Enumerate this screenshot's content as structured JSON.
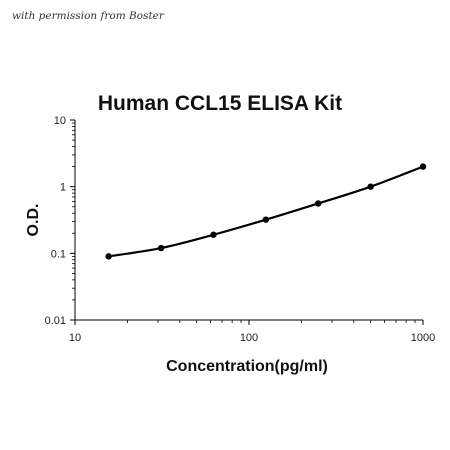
{
  "watermark": "with permission from Boster",
  "chart_data": {
    "type": "line",
    "title": "Human CCL15 ELISA Kit",
    "xlabel": "Concentration(pg/ml)",
    "ylabel": "O.D.",
    "x_scale": "log",
    "y_scale": "log",
    "xlim": [
      10,
      1000
    ],
    "ylim": [
      0.01,
      10
    ],
    "x_ticks": [
      10,
      100,
      1000
    ],
    "y_ticks": [
      0.01,
      0.1,
      1,
      10
    ],
    "x_tick_labels": [
      "10",
      "100",
      "1000"
    ],
    "y_tick_labels": [
      "0.01",
      "0.1",
      "1",
      "10"
    ],
    "grid": false,
    "series": [
      {
        "x": [
          15.6,
          31.25,
          62.5,
          125,
          250,
          500,
          1000
        ],
        "y": [
          0.09,
          0.12,
          0.19,
          0.32,
          0.56,
          1.0,
          2.0
        ],
        "color": "#000000"
      }
    ]
  }
}
